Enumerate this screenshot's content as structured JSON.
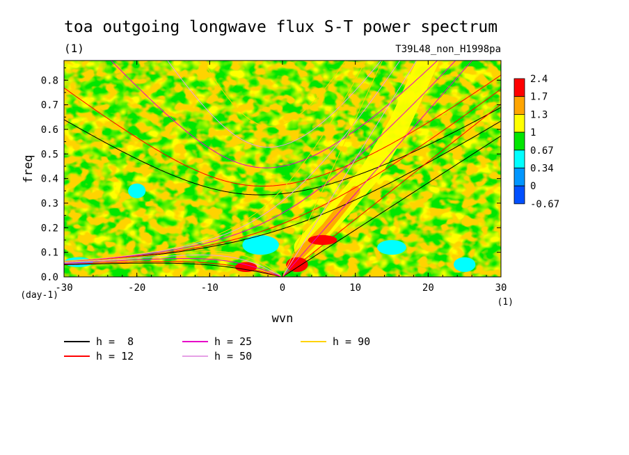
{
  "chart_data": {
    "type": "heatmap",
    "title": "toa outgoing longwave flux S-T power spectrum",
    "subtitle_left": "(1)",
    "subtitle_right": "T39L48_non_H1998pa",
    "xlabel": "wvn",
    "xunit": "(1)",
    "ylabel": "freq",
    "yunit": "(day-1)",
    "xlim": [
      -30,
      30
    ],
    "ylim": [
      0,
      0.88
    ],
    "xticks": [
      -30,
      -20,
      -10,
      0,
      10,
      20,
      30
    ],
    "xtick_labels": [
      "-30",
      "-20",
      "-10",
      "0",
      "10",
      "20",
      "30"
    ],
    "yticks": [
      0,
      0.1,
      0.2,
      0.3,
      0.4,
      0.5,
      0.6,
      0.7,
      0.8
    ],
    "ytick_labels": [
      "0.0",
      "0.1",
      "0.2",
      "0.3",
      "0.4",
      "0.5",
      "0.6",
      "0.7",
      "0.8"
    ],
    "colorbar": {
      "levels": [
        "2.4",
        "1.7",
        "1.3",
        "1",
        "0.67",
        "0.34",
        "0",
        "-0.67"
      ],
      "colors": [
        "#ff0000",
        "#ffa500",
        "#ffff00",
        "#00e600",
        "#00ffff",
        "#0096ff",
        "#0050ff"
      ]
    },
    "background_level_color": "#00e600",
    "features": [
      {
        "name": "kelvin-band",
        "color": "#ffff00",
        "points": [
          [
            3,
            0.12
          ],
          [
            8,
            0.28
          ],
          [
            12,
            0.42
          ],
          [
            16,
            0.62
          ],
          [
            20,
            0.88
          ]
        ],
        "width": 2.5
      },
      {
        "name": "kelvin-band-inner",
        "color": "#ffa500",
        "points": [
          [
            2,
            0.08
          ],
          [
            6,
            0.2
          ],
          [
            10,
            0.35
          ]
        ],
        "width": 1.2
      },
      {
        "name": "mjo-peak",
        "color": "#ff0000",
        "center": [
          5.5,
          0.15
        ],
        "rx": 2,
        "ry": 0.02
      },
      {
        "name": "low-freq-westward",
        "color": "#ff0000",
        "center": [
          -5,
          0.04
        ],
        "rx": 1.5,
        "ry": 0.02
      },
      {
        "name": "low-freq-eastward",
        "color": "#ff0000",
        "center": [
          2,
          0.05
        ],
        "rx": 1.5,
        "ry": 0.03
      },
      {
        "name": "cyan-patch-1",
        "color": "#00ffff",
        "center": [
          -3,
          0.13
        ],
        "rx": 2.5,
        "ry": 0.04
      },
      {
        "name": "cyan-patch-2",
        "color": "#00ffff",
        "center": [
          -28,
          0.06
        ],
        "rx": 2,
        "ry": 0.02
      },
      {
        "name": "cyan-patch-3",
        "color": "#00ffff",
        "center": [
          -20,
          0.35
        ],
        "rx": 1.2,
        "ry": 0.03
      },
      {
        "name": "cyan-patch-4",
        "color": "#00ffff",
        "center": [
          15,
          0.12
        ],
        "rx": 2,
        "ry": 0.03
      },
      {
        "name": "cyan-patch-5",
        "color": "#00ffff",
        "center": [
          25,
          0.05
        ],
        "rx": 1.5,
        "ry": 0.03
      }
    ],
    "dispersion_curves": [
      {
        "name": "h =  8",
        "color": "#000000",
        "h": 8
      },
      {
        "name": "h = 12",
        "color": "#ff0000",
        "h": 12
      },
      {
        "name": "h = 25",
        "color": "#e600c8",
        "h": 25
      },
      {
        "name": "h = 50",
        "color": "#e6a0e6",
        "h": 50
      },
      {
        "name": "h = 90",
        "color": "#ffd200",
        "h": 90
      }
    ],
    "legend_placement": "bottom"
  }
}
